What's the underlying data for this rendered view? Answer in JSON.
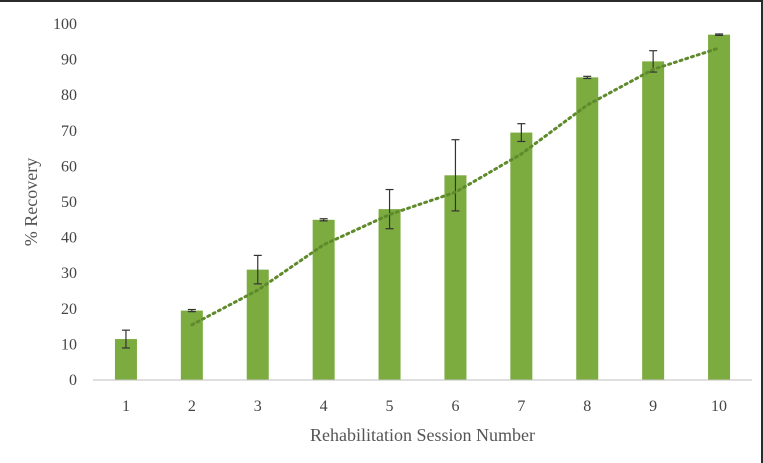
{
  "chart_data": {
    "type": "bar",
    "title": "",
    "xlabel": "Rehabilitation Session Number",
    "ylabel": "% Recovery",
    "categories": [
      "1",
      "2",
      "3",
      "4",
      "5",
      "6",
      "7",
      "8",
      "9",
      "10"
    ],
    "series": [
      {
        "values": [
          11.5,
          19.5,
          31,
          45,
          48,
          57.5,
          69.5,
          85,
          89.5,
          97
        ],
        "error": [
          2.5,
          0.3,
          4,
          0.3,
          5.5,
          10,
          2.5,
          0.3,
          3,
          0.2
        ]
      }
    ],
    "trendline": {
      "style": "dotted",
      "type": "moving-average",
      "period": 2,
      "values": [
        null,
        15.5,
        25.25,
        38,
        46.5,
        52.75,
        63.5,
        77.25,
        87.25,
        93.25
      ]
    },
    "ylim": [
      0,
      100
    ],
    "yticks": [
      0,
      10,
      20,
      30,
      40,
      50,
      60,
      70,
      80,
      90,
      100
    ],
    "grid": false,
    "legend": "none",
    "colors": {
      "bar": "#7cab3f",
      "trendline": "#5e8a2c",
      "error_bar": "#333333",
      "axis": "#bfbfbf"
    }
  }
}
